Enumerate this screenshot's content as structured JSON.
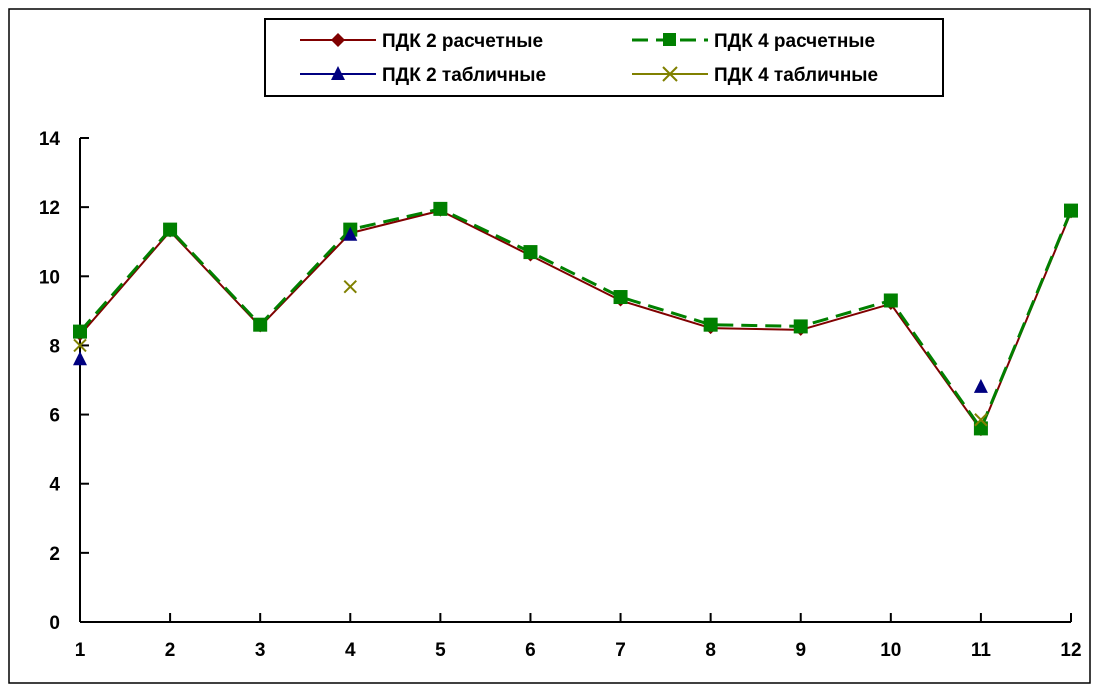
{
  "chart_data": {
    "type": "line",
    "x": [
      1,
      2,
      3,
      4,
      5,
      6,
      7,
      8,
      9,
      10,
      11,
      12
    ],
    "xlim": [
      1,
      12
    ],
    "ylim": [
      0,
      14
    ],
    "y_ticks": [
      0,
      2,
      4,
      6,
      8,
      10,
      12,
      14
    ],
    "x_ticks": [
      "1",
      "2",
      "3",
      "4",
      "5",
      "6",
      "7",
      "8",
      "9",
      "10",
      "11",
      "12"
    ],
    "grid": false,
    "legend_position": "top-center",
    "series": [
      {
        "name": "ПДК 2 расчетные",
        "color": "#800000",
        "marker": "diamond",
        "line": "solid",
        "x": [
          1,
          2,
          3,
          4,
          5,
          6,
          7,
          8,
          9,
          10,
          11,
          12
        ],
        "values": [
          8.3,
          11.3,
          8.55,
          11.25,
          11.9,
          10.6,
          9.3,
          8.5,
          8.45,
          9.2,
          5.55,
          11.85
        ]
      },
      {
        "name": "ПДК 4 расчетные",
        "color": "#008000",
        "marker": "square",
        "line": "dashed",
        "x": [
          1,
          2,
          3,
          4,
          5,
          6,
          7,
          8,
          9,
          10,
          11,
          12
        ],
        "values": [
          8.4,
          11.35,
          8.6,
          11.35,
          11.95,
          10.7,
          9.4,
          8.6,
          8.55,
          9.3,
          5.6,
          11.9
        ]
      },
      {
        "name": "ПДК 2 табличные",
        "color": "#000080",
        "marker": "triangle",
        "line": "none",
        "x": [
          1,
          4,
          11
        ],
        "values": [
          7.6,
          11.2,
          6.8
        ]
      },
      {
        "name": "ПДК 4 табличные",
        "color": "#808000",
        "marker": "x",
        "line": "none",
        "x": [
          1,
          4,
          11
        ],
        "values": [
          8.0,
          9.7,
          5.85
        ]
      }
    ]
  }
}
